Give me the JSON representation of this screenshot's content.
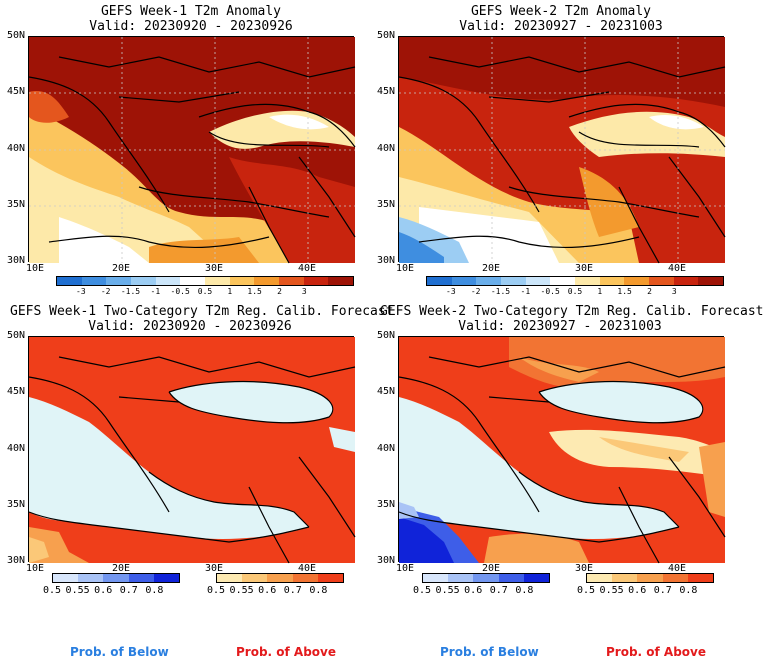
{
  "panels": [
    {
      "title_line1": "GEFS Week-1 T2m Anomaly",
      "title_line2": "Valid: 20230920 - 20230926"
    },
    {
      "title_line1": "GEFS Week-2 T2m Anomaly",
      "title_line2": "Valid: 20230927 - 20231003"
    },
    {
      "title_line1": "GEFS Week-1 Two-Category T2m Reg. Calib. Forecast",
      "title_line2": "Valid: 20230920 - 20230926"
    },
    {
      "title_line1": "GEFS Week-2 Two-Category T2m Reg. Calib. Forecast",
      "title_line2": "Valid: 20230927 - 20231003"
    }
  ],
  "lat_labels": [
    "50N",
    "45N",
    "40N",
    "35N",
    "30N"
  ],
  "lon_labels": [
    "10E",
    "20E",
    "30E",
    "40E"
  ],
  "anomaly_colorbar": {
    "labels": [
      "-3",
      "-2",
      "-1.5",
      "-1",
      "-0.5",
      "0.5",
      "1",
      "1.5",
      "2",
      "3"
    ],
    "colors": [
      "#1f6fd1",
      "#3f8ee0",
      "#6aaeea",
      "#9ccdf3",
      "#cce6fa",
      "#ffffff",
      "#fde9a9",
      "#fbc55d",
      "#f39a2e",
      "#e4561e",
      "#c8240e",
      "#9e1306"
    ]
  },
  "below_colorbar": {
    "labels": [
      "0.5",
      "0.55",
      "0.6",
      "0.7",
      "0.8"
    ],
    "colors": [
      "#d8e6fb",
      "#a9c3f6",
      "#7397f0",
      "#3e5ee8",
      "#1023d9"
    ]
  },
  "above_colorbar": {
    "labels": [
      "0.5",
      "0.55",
      "0.6",
      "0.7",
      "0.8"
    ],
    "colors": [
      "#fdeab2",
      "#fbc878",
      "#f7a04e",
      "#f27433",
      "#ef3e1a"
    ]
  },
  "legend": {
    "below": "Prob. of Below",
    "above": "Prob. of Above"
  }
}
